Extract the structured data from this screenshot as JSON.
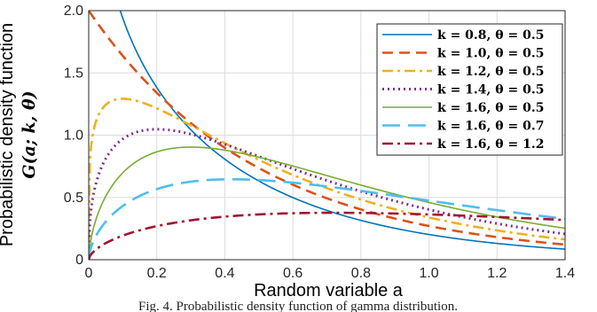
{
  "chart_data": {
    "type": "line",
    "xlabel": "Random variable a",
    "ylabel_line1": "Probabilistic density function",
    "ylabel_line2": "G(a; k, θ)",
    "xlim": [
      0,
      1.4
    ],
    "ylim": [
      0,
      2.0
    ],
    "xticks": [
      "0",
      "0.2",
      "0.4",
      "0.6",
      "0.8",
      "1.0",
      "1.2",
      "1.4"
    ],
    "yticks": [
      "0",
      "0.5",
      "1.0",
      "1.5",
      "2.0"
    ],
    "grid": true,
    "legend_position": "top-right",
    "series": [
      {
        "name": "k = 0.8, θ = 0.5",
        "k": 0.8,
        "theta": 0.5,
        "color": "#0072BD",
        "dash": "none"
      },
      {
        "name": "k = 1.0, θ = 0.5",
        "k": 1.0,
        "theta": 0.5,
        "color": "#D95319",
        "dash": "dashed"
      },
      {
        "name": "k = 1.2, θ = 0.5",
        "k": 1.2,
        "theta": 0.5,
        "color": "#EDB120",
        "dash": "dashdot"
      },
      {
        "name": "k = 1.4, θ = 0.5",
        "k": 1.4,
        "theta": 0.5,
        "color": "#7E2F8E",
        "dash": "dotted"
      },
      {
        "name": "k = 1.6, θ = 0.5",
        "k": 1.6,
        "theta": 0.5,
        "color": "#77AC30",
        "dash": "none"
      },
      {
        "name": "k = 1.6, θ = 0.7",
        "k": 1.6,
        "theta": 0.7,
        "color": "#4DBEEE",
        "dash": "longdash"
      },
      {
        "name": "k = 1.6, θ = 1.2",
        "k": 1.6,
        "theta": 1.2,
        "color": "#A2142F",
        "dash": "dashdot"
      }
    ]
  },
  "caption": "Fig. 4. Probabilistic density function of gamma distribution."
}
